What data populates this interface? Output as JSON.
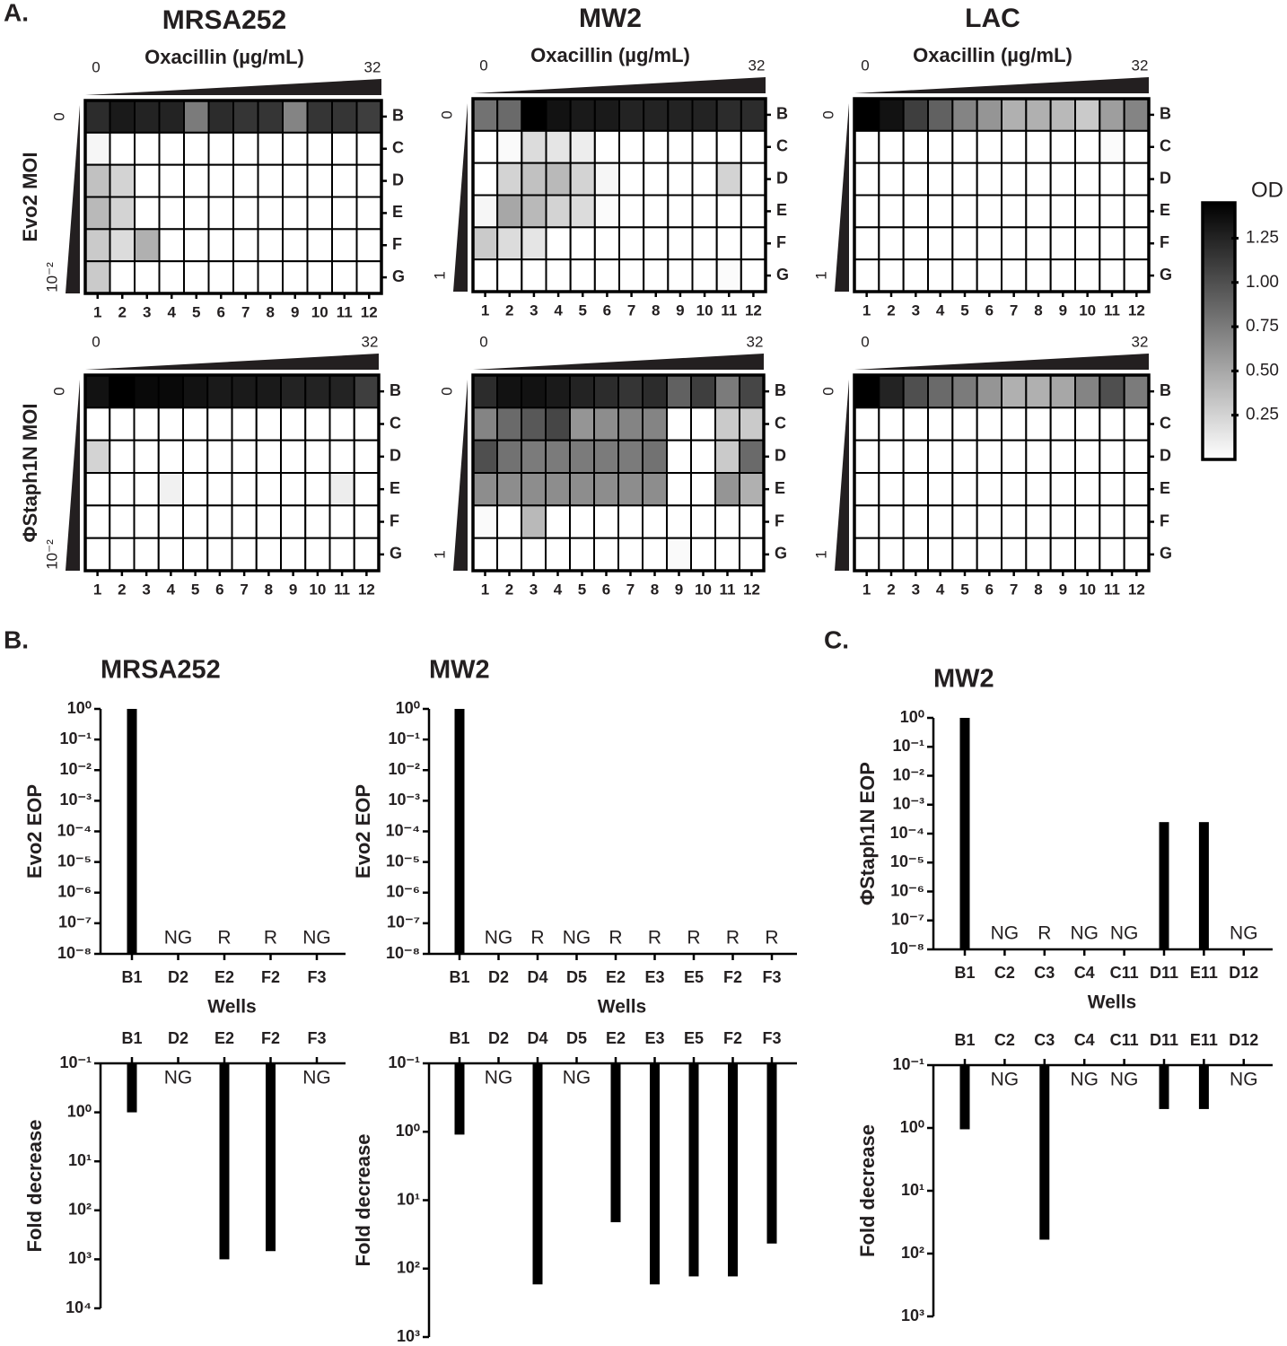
{
  "panel_labels": [
    "A.",
    "B.",
    "C."
  ],
  "chart_data": [
    {
      "type": "heatmap",
      "title": "MRSA252",
      "x_label": "Oxacillin (µg/mL)",
      "xlim": [
        0,
        32
      ],
      "y_label": "Evo2 MOI",
      "y_gradient_labels": [
        "0",
        "10⁻²"
      ],
      "rows": [
        "B",
        "C",
        "D",
        "E",
        "F",
        "G"
      ],
      "columns": [
        "1",
        "2",
        "3",
        "4",
        "5",
        "6",
        "7",
        "8",
        "9",
        "10",
        "11",
        "12"
      ],
      "values": [
        [
          1.2,
          1.3,
          1.25,
          1.25,
          0.75,
          1.2,
          1.15,
          1.15,
          0.7,
          1.15,
          1.15,
          1.1
        ],
        [
          0.05,
          0,
          0,
          0,
          0,
          0,
          0,
          0,
          0,
          0,
          0,
          0
        ],
        [
          0.35,
          0.25,
          0,
          0,
          0,
          0,
          0,
          0,
          0,
          0,
          0,
          0
        ],
        [
          0.4,
          0.25,
          0,
          0,
          0,
          0,
          0,
          0,
          0,
          0,
          0,
          0
        ],
        [
          0.3,
          0.2,
          0.45,
          0,
          0,
          0,
          0,
          0,
          0,
          0,
          0,
          0
        ],
        [
          0.3,
          0,
          0,
          0,
          0,
          0,
          0,
          0,
          0,
          0,
          0,
          0
        ]
      ]
    },
    {
      "type": "heatmap",
      "title": "MW2",
      "x_label": "Oxacillin (µg/mL)",
      "xlim": [
        0,
        32
      ],
      "y_gradient_labels": [
        "0",
        "1"
      ],
      "rows": [
        "B",
        "C",
        "D",
        "E",
        "F",
        "G"
      ],
      "columns": [
        "1",
        "2",
        "3",
        "4",
        "5",
        "6",
        "7",
        "8",
        "9",
        "10",
        "11",
        "12"
      ],
      "values": [
        [
          0.8,
          0.85,
          1.45,
          1.35,
          1.3,
          1.3,
          1.25,
          1.25,
          1.25,
          1.25,
          1.2,
          1.2
        ],
        [
          0,
          0.03,
          0.2,
          0.15,
          0.1,
          0,
          0,
          0,
          0,
          0,
          0,
          0
        ],
        [
          0,
          0.25,
          0.35,
          0.4,
          0.25,
          0.05,
          0,
          0,
          0,
          0,
          0.25,
          0
        ],
        [
          0.05,
          0.5,
          0.4,
          0.25,
          0.2,
          0.02,
          0,
          0,
          0,
          0,
          0,
          0
        ],
        [
          0.3,
          0.2,
          0.15,
          0,
          0,
          0,
          0,
          0,
          0,
          0,
          0,
          0
        ],
        [
          0,
          0,
          0,
          0,
          0,
          0,
          0,
          0,
          0,
          0,
          0.02,
          0
        ]
      ]
    },
    {
      "type": "heatmap",
      "title": "LAC",
      "x_label": "Oxacillin (µg/mL)",
      "xlim": [
        0,
        32
      ],
      "y_gradient_labels": [
        "0",
        "1"
      ],
      "rows": [
        "B",
        "C",
        "D",
        "E",
        "F",
        "G"
      ],
      "columns": [
        "1",
        "2",
        "3",
        "4",
        "5",
        "6",
        "7",
        "8",
        "9",
        "10",
        "11",
        "12"
      ],
      "values": [
        [
          1.45,
          1.35,
          1.1,
          0.9,
          0.7,
          0.6,
          0.45,
          0.45,
          0.4,
          0.3,
          0.55,
          0.7
        ],
        [
          0,
          0,
          0,
          0,
          0,
          0,
          0,
          0,
          0,
          0,
          0.02,
          0
        ],
        [
          0,
          0,
          0,
          0,
          0,
          0,
          0,
          0,
          0,
          0,
          0,
          0
        ],
        [
          0,
          0,
          0,
          0,
          0,
          0,
          0,
          0,
          0,
          0,
          0,
          0
        ],
        [
          0,
          0,
          0,
          0,
          0,
          0,
          0,
          0,
          0,
          0,
          0,
          0
        ],
        [
          0,
          0,
          0,
          0,
          0,
          0,
          0,
          0,
          0,
          0,
          0,
          0
        ]
      ]
    },
    {
      "type": "heatmap",
      "xlim": [
        0,
        32
      ],
      "y_label": "ΦStaph1N MOI",
      "y_gradient_labels": [
        "0",
        "10⁻²"
      ],
      "rows": [
        "B",
        "C",
        "D",
        "E",
        "F",
        "G"
      ],
      "columns": [
        "1",
        "2",
        "3",
        "4",
        "5",
        "6",
        "7",
        "8",
        "9",
        "10",
        "11",
        "12"
      ],
      "values": [
        [
          1.35,
          1.45,
          1.4,
          1.4,
          1.35,
          1.3,
          1.3,
          1.3,
          1.25,
          1.25,
          1.25,
          1.1
        ],
        [
          0,
          0,
          0,
          0,
          0,
          0,
          0,
          0,
          0,
          0,
          0,
          0
        ],
        [
          0.25,
          0,
          0,
          0,
          0,
          0,
          0,
          0,
          0,
          0,
          0,
          0
        ],
        [
          0,
          0,
          0,
          0.08,
          0,
          0,
          0,
          0,
          0,
          0,
          0.1,
          0
        ],
        [
          0,
          0,
          0,
          0,
          0,
          0,
          0,
          0,
          0,
          0,
          0,
          0
        ],
        [
          0,
          0,
          0,
          0,
          0,
          0,
          0,
          0,
          0,
          0,
          0,
          0
        ]
      ]
    },
    {
      "type": "heatmap",
      "xlim": [
        0,
        32
      ],
      "y_gradient_labels": [
        "0",
        "1"
      ],
      "rows": [
        "B",
        "C",
        "D",
        "E",
        "F",
        "G"
      ],
      "columns": [
        "1",
        "2",
        "3",
        "4",
        "5",
        "6",
        "7",
        "8",
        "9",
        "10",
        "11",
        "12"
      ],
      "values": [
        [
          1.2,
          1.35,
          1.35,
          1.3,
          1.25,
          1.2,
          1.15,
          1.2,
          0.9,
          1.1,
          0.75,
          1.05
        ],
        [
          0.7,
          0.85,
          0.95,
          1.05,
          0.6,
          0.65,
          0.7,
          0.7,
          0,
          0,
          0.3,
          0.3
        ],
        [
          1.0,
          0.8,
          0.75,
          0.75,
          0.75,
          0.75,
          0.75,
          0.8,
          0,
          0,
          0.3,
          0.85
        ],
        [
          0.65,
          0.65,
          0.65,
          0.65,
          0.65,
          0.65,
          0.65,
          0.65,
          0,
          0,
          0.6,
          0.45
        ],
        [
          0.03,
          0,
          0.4,
          0,
          0,
          0,
          0,
          0,
          0,
          0,
          0,
          0
        ],
        [
          0,
          0,
          0,
          0,
          0,
          0,
          0,
          0,
          0.03,
          0,
          0,
          0
        ]
      ]
    },
    {
      "type": "heatmap",
      "xlim": [
        0,
        32
      ],
      "y_gradient_labels": [
        "0",
        "1"
      ],
      "rows": [
        "B",
        "C",
        "D",
        "E",
        "F",
        "G"
      ],
      "columns": [
        "1",
        "2",
        "3",
        "4",
        "5",
        "6",
        "7",
        "8",
        "9",
        "10",
        "11",
        "12"
      ],
      "values": [
        [
          1.45,
          1.25,
          1.0,
          0.85,
          0.75,
          0.6,
          0.45,
          0.45,
          0.5,
          0.7,
          1.0,
          0.75
        ],
        [
          0,
          0,
          0,
          0,
          0,
          0,
          0,
          0,
          0,
          0,
          0,
          0
        ],
        [
          0,
          0,
          0,
          0,
          0,
          0,
          0,
          0,
          0,
          0,
          0,
          0
        ],
        [
          0,
          0,
          0,
          0,
          0,
          0,
          0,
          0,
          0,
          0,
          0,
          0
        ],
        [
          0,
          0,
          0,
          0,
          0,
          0,
          0,
          0,
          0,
          0,
          0,
          0
        ],
        [
          0,
          0,
          0,
          0,
          0,
          0,
          0,
          0,
          0,
          0,
          0,
          0
        ]
      ]
    },
    {
      "type": "colorbar",
      "title": "OD",
      "lim": [
        0,
        1.45
      ],
      "ticks": [
        0.25,
        {
          "value": 0.5,
          "label": "0.50"
        },
        0.75,
        {
          "value": 1,
          "label": "1.00"
        },
        1.25
      ]
    },
    {
      "type": "bar",
      "title": "MRSA252",
      "y_label": "Evo2 EOP",
      "x_label": "Wells",
      "log_scale": true,
      "ylim": [
        1e-08,
        1
      ],
      "yticks": [
        {
          "value": 1,
          "label": "10⁰"
        },
        {
          "value": 0.1,
          "label": "10⁻¹"
        },
        {
          "value": 0.01,
          "label": "10⁻²"
        },
        {
          "value": 0.001,
          "label": "10⁻³"
        },
        {
          "value": 0.0001,
          "label": "10⁻⁴"
        },
        {
          "value": 1e-05,
          "label": "10⁻⁵"
        },
        {
          "value": 1e-06,
          "label": "10⁻⁶"
        },
        {
          "value": 1e-07,
          "label": "10⁻⁷"
        },
        {
          "value": 1e-08,
          "label": "10⁻⁸"
        }
      ],
      "categories": [
        "B1",
        "D2",
        "E2",
        "F2",
        "F3"
      ],
      "values": [
        1,
        null,
        null,
        null,
        null
      ],
      "value_labels": [
        null,
        "NG",
        "R",
        "R",
        "NG"
      ],
      "color": "#000000"
    },
    {
      "type": "bar",
      "title": "MW2",
      "y_label": "Evo2 EOP",
      "x_label": "Wells",
      "log_scale": true,
      "ylim": [
        1e-08,
        1
      ],
      "yticks": [
        {
          "value": 1,
          "label": "10⁰"
        },
        {
          "value": 0.1,
          "label": "10⁻¹"
        },
        {
          "value": 0.01,
          "label": "10⁻²"
        },
        {
          "value": 0.001,
          "label": "10⁻³"
        },
        {
          "value": 0.0001,
          "label": "10⁻⁴"
        },
        {
          "value": 1e-05,
          "label": "10⁻⁵"
        },
        {
          "value": 1e-06,
          "label": "10⁻⁶"
        },
        {
          "value": 1e-07,
          "label": "10⁻⁷"
        },
        {
          "value": 1e-08,
          "label": "10⁻⁸"
        }
      ],
      "categories": [
        "B1",
        "D2",
        "D4",
        "D5",
        "E2",
        "E3",
        "E5",
        "F2",
        "F3"
      ],
      "values": [
        1,
        null,
        null,
        null,
        null,
        null,
        null,
        null,
        null
      ],
      "value_labels": [
        null,
        "NG",
        "R",
        "NG",
        "R",
        "R",
        "R",
        "R",
        "R"
      ],
      "color": "#000000"
    },
    {
      "type": "bar",
      "title": "MW2",
      "y_label": "ΦStaph1N EOP",
      "x_label": "Wells",
      "log_scale": true,
      "ylim": [
        1e-08,
        1
      ],
      "yticks": [
        {
          "value": 1,
          "label": "10⁰"
        },
        {
          "value": 0.1,
          "label": "10⁻¹"
        },
        {
          "value": 0.01,
          "label": "10⁻²"
        },
        {
          "value": 0.001,
          "label": "10⁻³"
        },
        {
          "value": 0.0001,
          "label": "10⁻⁴"
        },
        {
          "value": 1e-05,
          "label": "10⁻⁵"
        },
        {
          "value": 1e-06,
          "label": "10⁻⁶"
        },
        {
          "value": 1e-07,
          "label": "10⁻⁷"
        },
        {
          "value": 1e-08,
          "label": "10⁻⁸"
        }
      ],
      "categories": [
        "B1",
        "C2",
        "C3",
        "C4",
        "C11",
        "D11",
        "E11",
        "D12"
      ],
      "values": [
        1,
        null,
        null,
        null,
        null,
        0.00025,
        0.00025,
        null
      ],
      "value_labels": [
        null,
        "NG",
        "R",
        "NG",
        "NG",
        null,
        null,
        "NG"
      ],
      "color": "#000000"
    },
    {
      "type": "bar",
      "y_label": "Fold decrease",
      "log_scale": true,
      "y_inverted": true,
      "ylim": [
        0.1,
        10000
      ],
      "yticks": [
        {
          "value": 0.1,
          "label": "10⁻¹"
        },
        {
          "value": 1,
          "label": "10⁰"
        },
        {
          "value": 10,
          "label": "10¹"
        },
        {
          "value": 100,
          "label": "10²"
        },
        {
          "value": 1000,
          "label": "10³"
        },
        {
          "value": 10000,
          "label": "10⁴"
        }
      ],
      "categories": [
        "B1",
        "D2",
        "E2",
        "F2",
        "F3"
      ],
      "values": [
        1,
        null,
        1000,
        680,
        null
      ],
      "value_labels": [
        null,
        "NG",
        null,
        null,
        "NG"
      ],
      "color": "#000000"
    },
    {
      "type": "bar",
      "y_label": "Fold decrease",
      "log_scale": true,
      "y_inverted": true,
      "ylim": [
        0.1,
        1000
      ],
      "yticks": [
        {
          "value": 0.1,
          "label": "10⁻¹"
        },
        {
          "value": 1,
          "label": "10⁰"
        },
        {
          "value": 10,
          "label": "10¹"
        },
        {
          "value": 100,
          "label": "10²"
        },
        {
          "value": 1000,
          "label": "10³"
        }
      ],
      "categories": [
        "B1",
        "D2",
        "D4",
        "D5",
        "E2",
        "E3",
        "E5",
        "F2",
        "F3"
      ],
      "values": [
        1.1,
        null,
        170,
        null,
        21,
        170,
        130,
        130,
        43
      ],
      "value_labels": [
        null,
        "NG",
        null,
        "NG",
        null,
        null,
        null,
        null,
        null
      ],
      "color": "#000000"
    },
    {
      "type": "bar",
      "y_label": "Fold decrease",
      "log_scale": true,
      "y_inverted": true,
      "ylim": [
        0.1,
        1000
      ],
      "yticks": [
        {
          "value": 0.1,
          "label": "10⁻¹"
        },
        {
          "value": 1,
          "label": "10⁰"
        },
        {
          "value": 10,
          "label": "10¹"
        },
        {
          "value": 100,
          "label": "10²"
        },
        {
          "value": 1000,
          "label": "10³"
        }
      ],
      "categories": [
        "B1",
        "C2",
        "C3",
        "C4",
        "C11",
        "D11",
        "E11",
        "D12"
      ],
      "values": [
        1.05,
        null,
        60,
        null,
        null,
        0.5,
        0.5,
        null
      ],
      "value_labels": [
        null,
        "NG",
        null,
        "NG",
        "NG",
        null,
        null,
        "NG"
      ],
      "color": "#000000"
    }
  ]
}
